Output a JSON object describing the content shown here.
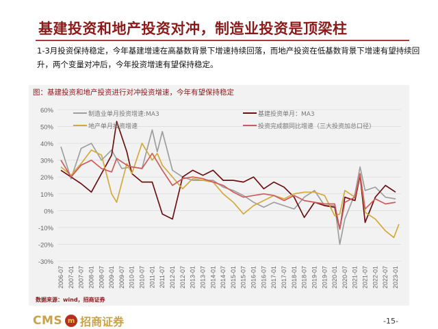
{
  "title": "基建投资和地产投资对冲，制造业投资是顶梁柱",
  "body": "1-3月投资保持稳定，今年基建增速在高基数背景下增速持续回落，而地产投资在低基数背景下增速有望持续回升，两个变量对冲后，今年投资增速有望保持稳定。",
  "figure_caption": "图：基建投资和地产投资进行对冲投资增速，今年有望保持稳定",
  "source": "数据来源：wind，招商证券",
  "footer": {
    "logo_en": "CMS",
    "logo_badge": "m",
    "logo_cn": "招商证券",
    "page": "-15-"
  },
  "chart_data": {
    "type": "line",
    "ylim": [
      -30,
      60
    ],
    "yticks": [
      "60%",
      "50%",
      "40%",
      "30%",
      "20%",
      "10%",
      "0%",
      "-10%",
      "-20%",
      "-30%"
    ],
    "xticks": [
      "2006-07",
      "2007-01",
      "2007-07",
      "2008-01",
      "2008-07",
      "2009-01",
      "2009-07",
      "2010-01",
      "2010-07",
      "2011-01",
      "2011-07",
      "2012-01",
      "2012-07",
      "2013-01",
      "2013-07",
      "2014-01",
      "2014-07",
      "2015-01",
      "2015-07",
      "2016-01",
      "2016-07",
      "2017-01",
      "2017-07",
      "2018-01",
      "2018-07",
      "2019-01",
      "2019-07",
      "2020-01",
      "2020-07",
      "2021-01",
      "2021-07",
      "2022-01",
      "2022-07",
      "2023-01"
    ],
    "grid": true,
    "legend_placement": "top",
    "series": [
      {
        "name": "制造业单月投资增速:MA3",
        "color": "#9e9e9e",
        "points": [
          [
            "2006-07",
            38
          ],
          [
            "2007-01",
            19
          ],
          [
            "2007-07",
            37
          ],
          [
            "2008-01",
            40
          ],
          [
            "2008-07",
            30
          ],
          [
            "2009-01",
            36
          ],
          [
            "2009-07",
            25
          ],
          [
            "2010-01",
            26
          ],
          [
            "2010-07",
            25
          ],
          [
            "2011-01",
            48
          ],
          [
            "2011-04",
            35
          ],
          [
            "2011-07",
            47
          ],
          [
            "2012-01",
            24
          ],
          [
            "2012-07",
            20
          ],
          [
            "2013-01",
            18
          ],
          [
            "2013-07",
            18
          ],
          [
            "2014-01",
            18
          ],
          [
            "2014-07",
            14
          ],
          [
            "2015-01",
            12
          ],
          [
            "2015-07",
            9
          ],
          [
            "2016-01",
            5
          ],
          [
            "2016-07",
            2
          ],
          [
            "2017-01",
            5
          ],
          [
            "2017-07",
            3
          ],
          [
            "2018-01",
            1
          ],
          [
            "2018-07",
            8
          ],
          [
            "2019-01",
            12
          ],
          [
            "2019-07",
            3
          ],
          [
            "2020-01",
            3
          ],
          [
            "2020-04",
            -20
          ],
          [
            "2020-07",
            -5
          ],
          [
            "2021-01",
            10
          ],
          [
            "2021-04",
            26
          ],
          [
            "2021-07",
            12
          ],
          [
            "2022-01",
            14
          ],
          [
            "2022-07",
            8
          ],
          [
            "2023-01",
            7
          ]
        ]
      },
      {
        "name": "基建投资单月：MA3",
        "color": "#6e0f0f",
        "points": [
          [
            "2006-07",
            24
          ],
          [
            "2007-01",
            20
          ],
          [
            "2007-07",
            16
          ],
          [
            "2008-01",
            11
          ],
          [
            "2008-07",
            22
          ],
          [
            "2009-01",
            33
          ],
          [
            "2009-04",
            53
          ],
          [
            "2009-10",
            35
          ],
          [
            "2010-01",
            22
          ],
          [
            "2010-07",
            17
          ],
          [
            "2011-01",
            17
          ],
          [
            "2011-07",
            -2
          ],
          [
            "2012-01",
            -5
          ],
          [
            "2012-07",
            20
          ],
          [
            "2013-01",
            24
          ],
          [
            "2013-07",
            21
          ],
          [
            "2014-01",
            24
          ],
          [
            "2014-07",
            18
          ],
          [
            "2015-01",
            18
          ],
          [
            "2015-07",
            17
          ],
          [
            "2016-01",
            20
          ],
          [
            "2016-07",
            13
          ],
          [
            "2017-01",
            17
          ],
          [
            "2017-07",
            14
          ],
          [
            "2018-01",
            8
          ],
          [
            "2018-07",
            -4
          ],
          [
            "2019-01",
            5
          ],
          [
            "2019-07",
            3
          ],
          [
            "2020-01",
            2
          ],
          [
            "2020-04",
            -11
          ],
          [
            "2020-07",
            8
          ],
          [
            "2021-01",
            6
          ],
          [
            "2021-04",
            21
          ],
          [
            "2021-07",
            -7
          ],
          [
            "2022-01",
            8
          ],
          [
            "2022-07",
            15
          ],
          [
            "2023-01",
            11
          ]
        ]
      },
      {
        "name": "地产单月投资增速",
        "color": "#d4a83a",
        "points": [
          [
            "2006-07",
            26
          ],
          [
            "2007-01",
            21
          ],
          [
            "2007-07",
            28
          ],
          [
            "2008-01",
            36
          ],
          [
            "2008-07",
            33
          ],
          [
            "2009-01",
            10
          ],
          [
            "2009-04",
            5
          ],
          [
            "2009-10",
            28
          ],
          [
            "2010-01",
            22
          ],
          [
            "2010-07",
            40
          ],
          [
            "2011-01",
            30
          ],
          [
            "2011-04",
            34
          ],
          [
            "2011-07",
            27
          ],
          [
            "2012-01",
            20
          ],
          [
            "2012-07",
            13
          ],
          [
            "2013-01",
            19
          ],
          [
            "2013-07",
            18
          ],
          [
            "2014-01",
            17
          ],
          [
            "2014-07",
            10
          ],
          [
            "2015-01",
            5
          ],
          [
            "2015-07",
            -2
          ],
          [
            "2016-01",
            3
          ],
          [
            "2016-07",
            6
          ],
          [
            "2017-01",
            9
          ],
          [
            "2017-07",
            7
          ],
          [
            "2018-01",
            10
          ],
          [
            "2018-07",
            11
          ],
          [
            "2019-01",
            11
          ],
          [
            "2019-07",
            9
          ],
          [
            "2020-01",
            -3
          ],
          [
            "2020-04",
            -2
          ],
          [
            "2020-07",
            12
          ],
          [
            "2021-01",
            8
          ],
          [
            "2021-04",
            22
          ],
          [
            "2021-07",
            -1
          ],
          [
            "2022-01",
            -5
          ],
          [
            "2022-07",
            -12
          ],
          [
            "2022-12",
            -16
          ],
          [
            "2023-03",
            -8
          ]
        ]
      },
      {
        "name": "投资完成额同比增速（三大投资加总口径）",
        "color": "#d05a5a",
        "points": [
          [
            "2006-07",
            30
          ],
          [
            "2007-01",
            20
          ],
          [
            "2007-07",
            27
          ],
          [
            "2008-01",
            30
          ],
          [
            "2008-07",
            25
          ],
          [
            "2009-01",
            23
          ],
          [
            "2009-04",
            31
          ],
          [
            "2009-10",
            27
          ],
          [
            "2010-01",
            26
          ],
          [
            "2010-07",
            25
          ],
          [
            "2011-01",
            34
          ],
          [
            "2011-07",
            24
          ],
          [
            "2012-01",
            15
          ],
          [
            "2012-07",
            19
          ],
          [
            "2013-01",
            20
          ],
          [
            "2013-07",
            19
          ],
          [
            "2014-01",
            17
          ],
          [
            "2014-07",
            15
          ],
          [
            "2015-01",
            11
          ],
          [
            "2015-07",
            8
          ],
          [
            "2016-01",
            9
          ],
          [
            "2016-07",
            10
          ],
          [
            "2017-01",
            9
          ],
          [
            "2017-07",
            6
          ],
          [
            "2018-01",
            9
          ],
          [
            "2018-07",
            6
          ],
          [
            "2019-01",
            5
          ],
          [
            "2019-07",
            4
          ],
          [
            "2020-01",
            4
          ],
          [
            "2020-04",
            -11
          ],
          [
            "2020-07",
            5
          ],
          [
            "2021-01",
            8
          ],
          [
            "2021-04",
            22
          ],
          [
            "2021-07",
            1
          ],
          [
            "2022-01",
            7
          ],
          [
            "2022-07",
            4
          ],
          [
            "2023-01",
            5
          ]
        ]
      }
    ]
  }
}
